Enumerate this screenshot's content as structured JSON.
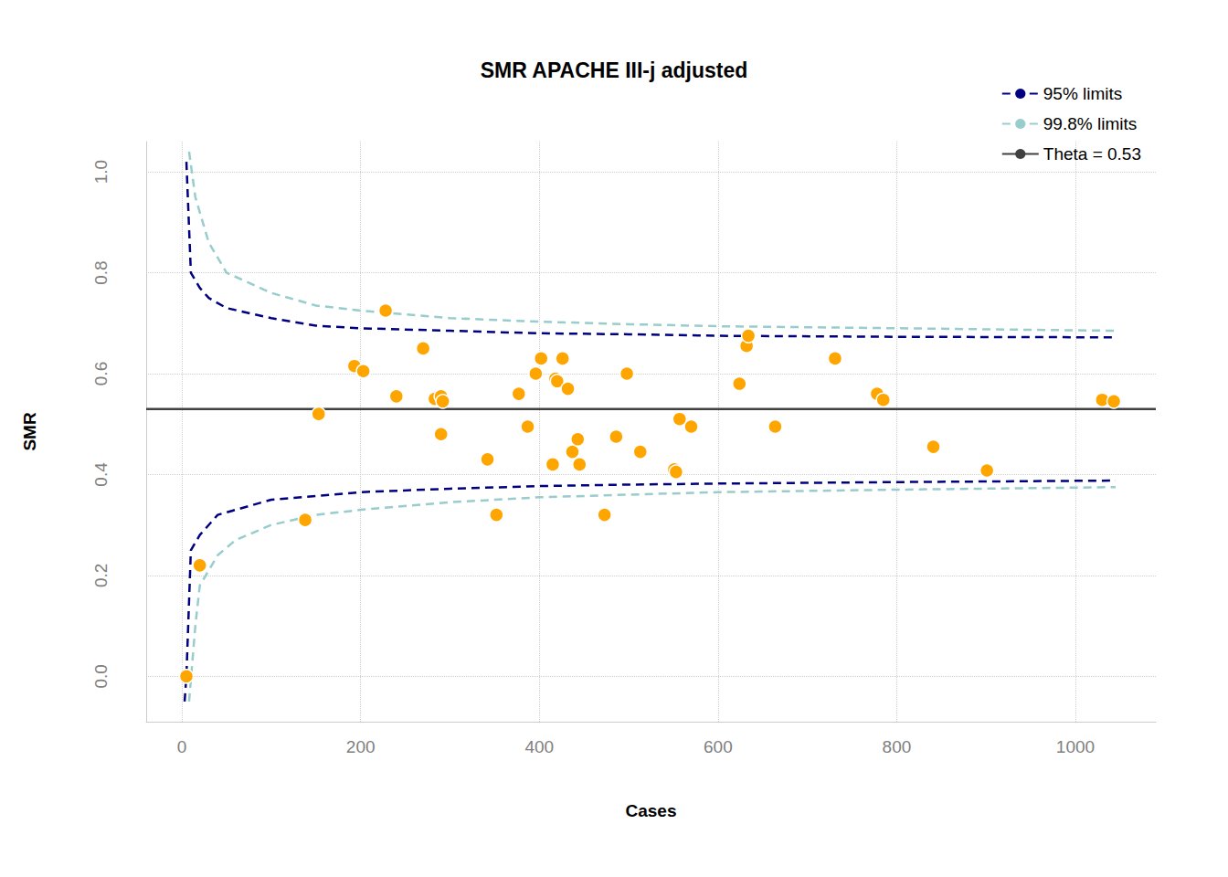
{
  "chart_data": {
    "type": "scatter",
    "title": "SMR APACHE III-j adjusted",
    "x_label": "Cases",
    "y_label": "SMR",
    "xlim": [
      -40,
      1090
    ],
    "ylim": [
      -0.09,
      1.06
    ],
    "xticks": [
      0,
      200,
      400,
      600,
      800,
      1000
    ],
    "yticks": [
      {
        "value": 0,
        "label": "0.0"
      },
      0.2,
      0.4,
      0.6,
      0.8,
      {
        "value": 1,
        "label": "1.0"
      }
    ],
    "grid": true,
    "legend": "top-right",
    "color": "#FFA500",
    "marker": "circle",
    "x": [
      5,
      20,
      138,
      153,
      193,
      203,
      228,
      240,
      270,
      283,
      290,
      290,
      292,
      342,
      352,
      377,
      387,
      396,
      402,
      415,
      418,
      420,
      426,
      432,
      437,
      443,
      445,
      473,
      486,
      498,
      513,
      551,
      553,
      557,
      570,
      624,
      632,
      634,
      664,
      731,
      778,
      785,
      841,
      901,
      1030,
      1043
    ],
    "values": [
      0.0,
      0.22,
      0.31,
      0.52,
      0.615,
      0.605,
      0.725,
      0.555,
      0.65,
      0.55,
      0.555,
      0.48,
      0.545,
      0.43,
      0.32,
      0.56,
      0.495,
      0.6,
      0.63,
      0.42,
      0.59,
      0.585,
      0.63,
      0.57,
      0.445,
      0.47,
      0.42,
      0.32,
      0.475,
      0.6,
      0.445,
      0.41,
      0.405,
      0.51,
      0.495,
      0.58,
      0.655,
      0.675,
      0.495,
      0.63,
      0.56,
      0.548,
      0.455,
      0.408,
      0.548,
      0.545
    ],
    "series": [
      {
        "name": "95% limits",
        "type": "line",
        "line_style": "dashed",
        "color": "#000080",
        "x": [
          5,
          10,
          20,
          30,
          50,
          100,
          150,
          200,
          300,
          400,
          500,
          600,
          800,
          1045
        ],
        "values": [
          1.02,
          0.8,
          0.77,
          0.75,
          0.73,
          0.71,
          0.695,
          0.69,
          0.685,
          0.68,
          0.678,
          0.675,
          0.673,
          0.672
        ]
      },
      {
        "name": "95% limits",
        "type": "line",
        "line_style": "dashed",
        "color": "#000080",
        "x": [
          3,
          5,
          10,
          20,
          40,
          100,
          200,
          300,
          400,
          500,
          600,
          800,
          1045
        ],
        "values": [
          -0.05,
          0.0,
          0.25,
          0.28,
          0.32,
          0.35,
          0.365,
          0.372,
          0.377,
          0.38,
          0.382,
          0.385,
          0.388
        ]
      },
      {
        "name": "99.8% limits",
        "type": "line",
        "line_style": "dashed",
        "color": "#99CCCC",
        "x": [
          8,
          15,
          30,
          50,
          100,
          150,
          200,
          300,
          400,
          500,
          600,
          800,
          1045
        ],
        "values": [
          1.04,
          0.95,
          0.86,
          0.8,
          0.76,
          0.735,
          0.725,
          0.71,
          0.703,
          0.698,
          0.694,
          0.69,
          0.685
        ]
      },
      {
        "name": "99.8% limits",
        "type": "line",
        "line_style": "dashed",
        "color": "#99CCCC",
        "x": [
          8,
          15,
          20,
          40,
          60,
          100,
          150,
          200,
          300,
          400,
          500,
          600,
          800,
          1045
        ],
        "values": [
          -0.05,
          0.1,
          0.18,
          0.24,
          0.27,
          0.3,
          0.32,
          0.33,
          0.345,
          0.355,
          0.36,
          0.365,
          0.37,
          0.375
        ]
      },
      {
        "name": "Theta = 0.53",
        "type": "line",
        "line_style": "solid",
        "color": "#404040",
        "x": [
          -40,
          1090
        ],
        "values": [
          0.53,
          0.53
        ]
      }
    ]
  }
}
